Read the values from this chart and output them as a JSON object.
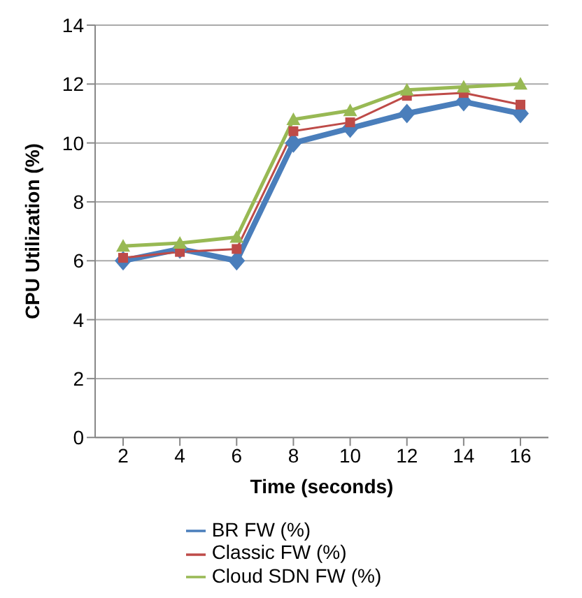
{
  "chart_data": {
    "type": "line",
    "xlabel": "Time (seconds)",
    "ylabel": "CPU Utilization (%)",
    "categories": [
      "2",
      "4",
      "6",
      "8",
      "10",
      "12",
      "14",
      "16"
    ],
    "series": [
      {
        "name": "BR FW (%)",
        "color": "#4a7ebb",
        "marker": "diamond",
        "values": [
          6.0,
          6.4,
          6.0,
          10.0,
          10.5,
          11.0,
          11.4,
          11.0
        ]
      },
      {
        "name": "Classic FW (%)",
        "color": "#be4b48",
        "marker": "square",
        "values": [
          6.1,
          6.3,
          6.4,
          10.4,
          10.7,
          11.6,
          11.7,
          11.3
        ]
      },
      {
        "name": "Cloud SDN FW (%)",
        "color": "#98b954",
        "marker": "triangle",
        "values": [
          6.5,
          6.6,
          6.8,
          10.8,
          11.1,
          11.8,
          11.9,
          12.0
        ]
      }
    ],
    "ylim": [
      0,
      14
    ],
    "yticks": [
      0,
      2,
      4,
      6,
      8,
      10,
      12,
      14
    ],
    "grid": "y",
    "legend": "bottom",
    "line_style": "solid"
  }
}
